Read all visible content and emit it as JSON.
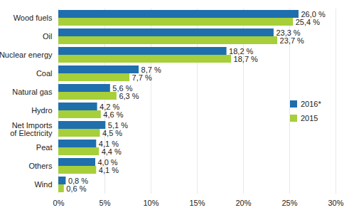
{
  "chart_data": {
    "type": "bar",
    "orientation": "horizontal",
    "categories": [
      "Wood fuels",
      "Oil",
      "Nuclear energy",
      "Coal",
      "Natural gas",
      "Hydro",
      "Net Imports\nof Electricity",
      "Peat",
      "Others",
      "Wind"
    ],
    "series": [
      {
        "name": "2016*",
        "color": "#1f6fad",
        "values": [
          26.0,
          23.3,
          18.2,
          8.7,
          5.6,
          4.2,
          5.1,
          4.1,
          4.0,
          0.8
        ],
        "value_labels": [
          "26,0 %",
          "23,3 %",
          "18,2 %",
          "8,7 %",
          "5,6 %",
          "4,2 %",
          "5,1 %",
          "4,1 %",
          "4,0 %",
          "0,8 %"
        ]
      },
      {
        "name": "2015",
        "color": "#a6cf3a",
        "values": [
          25.4,
          23.7,
          18.7,
          7.7,
          6.3,
          4.6,
          4.5,
          4.4,
          4.1,
          0.6
        ],
        "value_labels": [
          "25,4 %",
          "23,7 %",
          "18,7 %",
          "7,7 %",
          "6,3 %",
          "4,6 %",
          "4,5 %",
          "4,4 %",
          "4,1 %",
          "0,6 %"
        ]
      }
    ],
    "xlim": [
      0,
      30
    ],
    "xticks": [
      {
        "value": 0,
        "label": "0%"
      },
      {
        "value": 5,
        "label": "5%"
      },
      {
        "value": 10,
        "label": "10%"
      },
      {
        "value": 15,
        "label": "15%"
      },
      {
        "value": 20,
        "label": "20%"
      },
      {
        "value": 25,
        "label": "25%"
      },
      {
        "value": 30,
        "label": "30%"
      }
    ],
    "grid": true,
    "data_labels": true,
    "legend": "right"
  }
}
